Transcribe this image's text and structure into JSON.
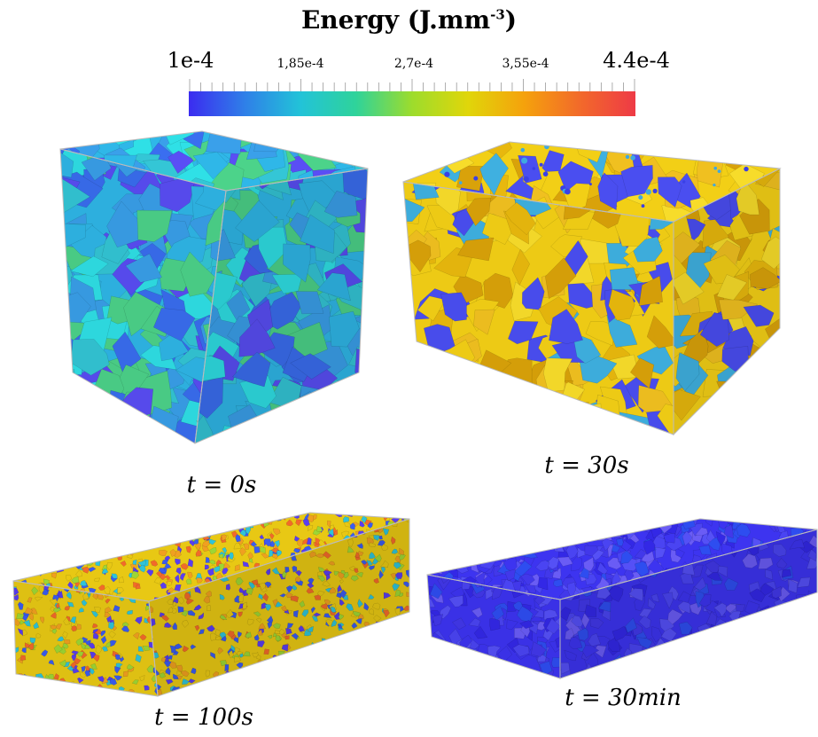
{
  "colorbar": {
    "title_prefix": "Energy (J.mm",
    "title_exp": "-3",
    "title_suffix": ")",
    "ticks": [
      "1e-4",
      "1,85e-4",
      "2,7e-4",
      "3,55e-4",
      "4.4e-4"
    ],
    "colormap": [
      "#3b2cf0",
      "#2f7fe8",
      "#22c3d8",
      "#2fd39a",
      "#9ddc2c",
      "#e0d60a",
      "#f5a20c",
      "#f26a2a",
      "#ee3a46"
    ]
  },
  "panels": [
    {
      "var": "t",
      "value": "0s",
      "palette": [
        "#2fb7e8",
        "#34c6d6",
        "#3aa0ea",
        "#4cd38a",
        "#3a6ef0",
        "#5a4ef5",
        "#2fe0e6"
      ]
    },
    {
      "var": "t",
      "value": "30s",
      "palette": [
        "#f2cf16",
        "#e8b80e",
        "#f7dc2a",
        "#d9a20a",
        "#f0c020",
        "#4a4ef0",
        "#3fb0e0"
      ]
    },
    {
      "var": "t",
      "value": "100s",
      "palette": [
        "#e8c814",
        "#f0a020",
        "#3a5cf0",
        "#2fc3d8",
        "#9ed634",
        "#f26a2a",
        "#5a3ef0"
      ]
    },
    {
      "var": "t",
      "value": "30min",
      "palette": [
        "#3d34f0",
        "#4a44f2",
        "#3328e6",
        "#5550f6",
        "#2e4df0",
        "#4238ea",
        "#6a5cf5"
      ]
    }
  ]
}
